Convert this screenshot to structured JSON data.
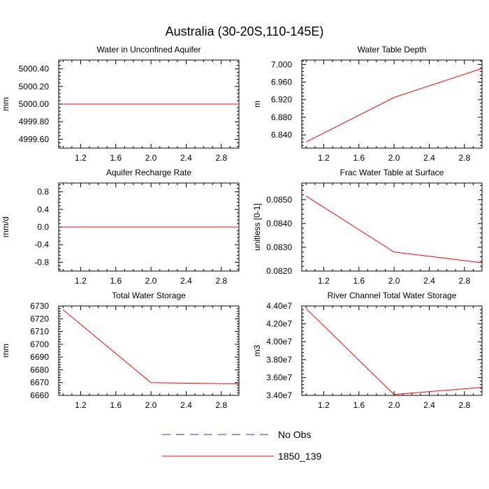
{
  "title": "Australia (30-20S,110-145E)",
  "legend": [
    {
      "label": "No Obs",
      "color": "#3333aa",
      "dash": true
    },
    {
      "label": "1850_139",
      "color": "#ff0000",
      "dash": false
    }
  ],
  "chart_data": [
    {
      "type": "line",
      "title": "Water in Unconfined Aquifer",
      "ylabel": "mm",
      "xlim": [
        0.95,
        3.0
      ],
      "ylim": [
        4999.5,
        5000.5
      ],
      "xticks": [
        1.2,
        1.6,
        2.0,
        2.4,
        2.8
      ],
      "yticks": [
        4999.6,
        4999.8,
        5000.0,
        5000.2,
        5000.4
      ],
      "ytick_labels": [
        "4999.60",
        "4999.80",
        "5000.00",
        "5000.20",
        "5000.40"
      ],
      "series": [
        {
          "name": "1850_139",
          "color": "#ff0000",
          "x": [
            1,
            2,
            3
          ],
          "values": [
            5000.0,
            5000.0,
            5000.0
          ]
        }
      ]
    },
    {
      "type": "line",
      "title": "Water Table Depth",
      "ylabel": "m",
      "xlim": [
        0.95,
        3.0
      ],
      "ylim": [
        6.81,
        7.01
      ],
      "xticks": [
        1.2,
        1.6,
        2.0,
        2.4,
        2.8
      ],
      "yticks": [
        6.84,
        6.88,
        6.92,
        6.96,
        7.0
      ],
      "ytick_labels": [
        "6.840",
        "6.880",
        "6.920",
        "6.960",
        "7.000"
      ],
      "series": [
        {
          "name": "1850_139",
          "color": "#ff0000",
          "x": [
            1,
            2,
            3
          ],
          "values": [
            6.824,
            6.925,
            6.991
          ]
        }
      ]
    },
    {
      "type": "line",
      "title": "Aquifer Recharge Rate",
      "ylabel": "mm/d",
      "xlim": [
        0.95,
        3.0
      ],
      "ylim": [
        -1.0,
        1.0
      ],
      "xticks": [
        1.2,
        1.6,
        2.0,
        2.4,
        2.8
      ],
      "yticks": [
        -0.8,
        -0.4,
        0.0,
        0.4,
        0.8
      ],
      "ytick_labels": [
        "-0.8",
        "-0.4",
        "0.0",
        "0.4",
        "0.8"
      ],
      "series": [
        {
          "name": "1850_139",
          "color": "#ff0000",
          "x": [
            1,
            2,
            3
          ],
          "values": [
            0.0,
            0.0,
            0.0
          ]
        }
      ]
    },
    {
      "type": "line",
      "title": "Frac Water Table at Surface",
      "ylabel": "unitless [0-1]",
      "xlim": [
        0.95,
        3.0
      ],
      "ylim": [
        0.082,
        0.0857
      ],
      "xticks": [
        1.2,
        1.6,
        2.0,
        2.4,
        2.8
      ],
      "yticks": [
        0.082,
        0.083,
        0.084,
        0.085
      ],
      "ytick_labels": [
        "0.0820",
        "0.0830",
        "0.0840",
        "0.0850"
      ],
      "series": [
        {
          "name": "1850_139",
          "color": "#ff0000",
          "x": [
            1,
            2,
            3
          ],
          "values": [
            0.08515,
            0.0828,
            0.08235
          ]
        }
      ]
    },
    {
      "type": "line",
      "title": "Total Water Storage",
      "ylabel": "mm",
      "xlim": [
        0.95,
        3.0
      ],
      "ylim": [
        6660,
        6730
      ],
      "xticks": [
        1.2,
        1.6,
        2.0,
        2.4,
        2.8
      ],
      "yticks": [
        6660,
        6670,
        6680,
        6690,
        6700,
        6710,
        6720,
        6730
      ],
      "ytick_labels": [
        "6660",
        "6670",
        "6680",
        "6690",
        "6700",
        "6710",
        "6720",
        "6730"
      ],
      "series": [
        {
          "name": "1850_139",
          "color": "#ff0000",
          "x": [
            1,
            2,
            3
          ],
          "values": [
            6727,
            6670,
            6669
          ]
        }
      ]
    },
    {
      "type": "line",
      "title": "River Channel Total Water Storage",
      "ylabel": "m3",
      "xlim": [
        0.95,
        3.0
      ],
      "ylim": [
        34000000,
        44000000
      ],
      "xticks": [
        1.2,
        1.6,
        2.0,
        2.4,
        2.8
      ],
      "yticks": [
        34000000,
        36000000,
        38000000,
        40000000,
        42000000,
        44000000
      ],
      "ytick_labels": [
        "3.40e7",
        "3.60e7",
        "3.80e7",
        "4.00e7",
        "4.20e7",
        "4.40e7"
      ],
      "series": [
        {
          "name": "1850_139",
          "color": "#ff0000",
          "x": [
            1,
            2,
            3
          ],
          "values": [
            43700000,
            34100000,
            34900000
          ]
        }
      ]
    }
  ]
}
